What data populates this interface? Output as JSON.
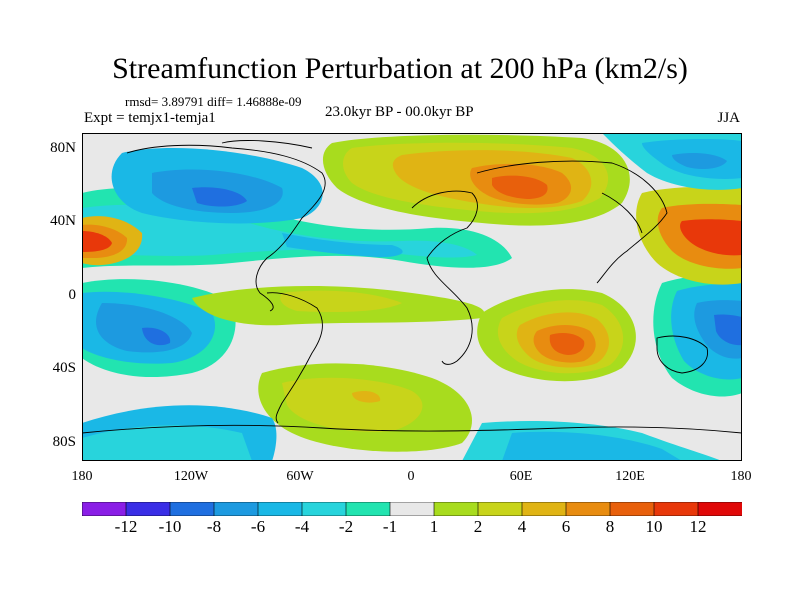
{
  "title": "Streamfunction Perturbation at 200 hPa (km2/s)",
  "stats": "rmsd= 3.89791 diff= 1.46888e-09",
  "experiment": "Expt = temjx1-temja1",
  "period": "23.0kyr BP - 00.0kyr BP",
  "season": "JJA",
  "lat_ticks": [
    "80N",
    "40N",
    "0",
    "40S",
    "80S"
  ],
  "lon_ticks": [
    "180",
    "120W",
    "60W",
    "0",
    "60E",
    "120E",
    "180"
  ],
  "colorbar": {
    "labels": [
      "-12",
      "-10",
      "-8",
      "-6",
      "-4",
      "-2",
      "-1",
      "1",
      "2",
      "4",
      "6",
      "8",
      "10",
      "12"
    ],
    "colors": [
      "#8a1ee6",
      "#3a2ee6",
      "#1f6fe0",
      "#1d9ae0",
      "#1ab8e6",
      "#28d4dc",
      "#22e4b0",
      "#e8e8e8",
      "#a8dc1e",
      "#c8d41a",
      "#e0b414",
      "#e88c10",
      "#e8600c",
      "#e8380a",
      "#e00808"
    ]
  },
  "map_features": {
    "positive_anomalies": [
      "North Atlantic / Europe high",
      "Central Asia high",
      "Indian Ocean high",
      "Pacific highs",
      "South Atlantic high"
    ],
    "negative_anomalies": [
      "North America low",
      "North Pacific lows",
      "South Pacific low",
      "West Pacific low"
    ]
  }
}
